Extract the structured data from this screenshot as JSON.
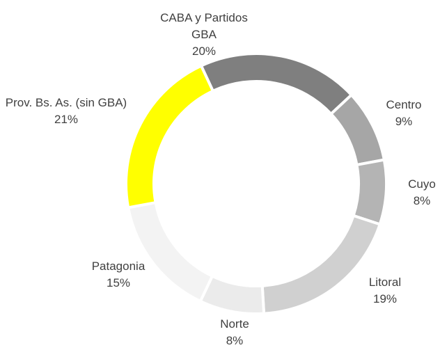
{
  "chart_data": {
    "type": "donut",
    "categories": [
      "CABA y Partidos GBA",
      "Centro",
      "Cuyo",
      "Litoral",
      "Norte",
      "Patagonia",
      "Prov. Bs. As. (sin GBA)"
    ],
    "values": [
      20,
      9,
      8,
      19,
      8,
      15,
      21
    ],
    "value_labels": [
      "20%",
      "9%",
      "8%",
      "19%",
      "8%",
      "15%",
      "21%"
    ],
    "colors": [
      "#7f7f7f",
      "#a6a6a6",
      "#b4b4b4",
      "#d0d0d0",
      "#ebebeb",
      "#f3f3f3",
      "#ffff00"
    ]
  }
}
